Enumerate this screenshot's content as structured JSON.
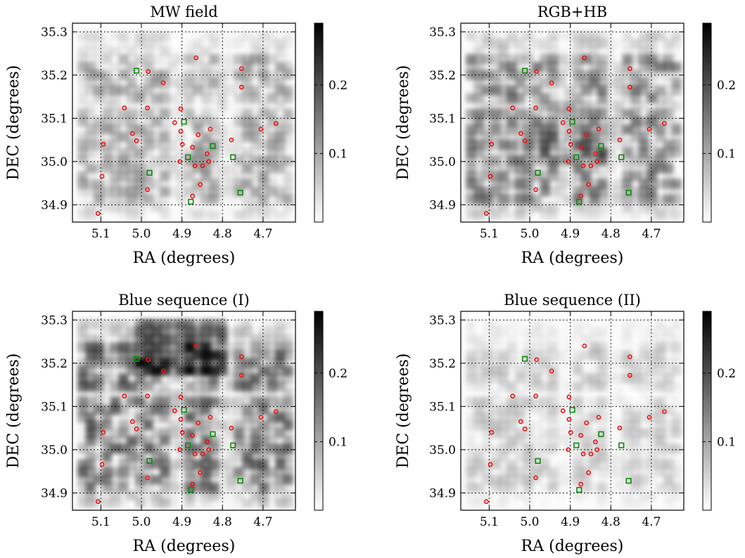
{
  "chart_data": [
    {
      "type": "heatmap",
      "title": "MW field",
      "xlabel": "RA (degrees)",
      "ylabel": "DEC (degrees)",
      "xlim": [
        5.17,
        4.62
      ],
      "ylim": [
        34.86,
        35.32
      ],
      "xticks": [
        "5.1",
        "5.0",
        "4.9",
        "4.8",
        "4.7"
      ],
      "yticks": [
        "34.9",
        "35.0",
        "35.1",
        "35.2",
        "35.3"
      ],
      "colorbar": {
        "range": [
          0,
          0.29
        ],
        "ticks": [
          "0.1",
          "0.2"
        ],
        "colormap": "white-to-black"
      },
      "grid": true,
      "density_level": 0.35
    },
    {
      "type": "heatmap",
      "title": "RGB+HB",
      "xlabel": "RA (degrees)",
      "ylabel": "DEC (degrees)",
      "xlim": [
        5.17,
        4.62
      ],
      "ylim": [
        34.86,
        35.32
      ],
      "xticks": [
        "5.1",
        "5.0",
        "4.9",
        "4.8",
        "4.7"
      ],
      "yticks": [
        "34.9",
        "35.0",
        "35.1",
        "35.2",
        "35.3"
      ],
      "colorbar": {
        "range": [
          0,
          0.29
        ],
        "ticks": [
          "0.1",
          "0.2"
        ],
        "colormap": "white-to-black"
      },
      "grid": true,
      "density_level": 0.5
    },
    {
      "type": "heatmap",
      "title": "Blue sequence (I)",
      "xlabel": "RA (degrees)",
      "ylabel": "DEC (degrees)",
      "xlim": [
        5.17,
        4.62
      ],
      "ylim": [
        34.86,
        35.32
      ],
      "xticks": [
        "5.1",
        "5.0",
        "4.9",
        "4.8",
        "4.7"
      ],
      "yticks": [
        "34.9",
        "35.0",
        "35.1",
        "35.2",
        "35.3"
      ],
      "colorbar": {
        "range": [
          0,
          0.29
        ],
        "ticks": [
          "0.1",
          "0.2"
        ],
        "colormap": "white-to-black"
      },
      "grid": true,
      "density_level": 0.6
    },
    {
      "type": "heatmap",
      "title": "Blue sequence (II)",
      "xlabel": "RA (degrees)",
      "ylabel": "DEC (degrees)",
      "xlim": [
        5.17,
        4.62
      ],
      "ylim": [
        34.86,
        35.32
      ],
      "xticks": [
        "5.1",
        "5.0",
        "4.9",
        "4.8",
        "4.7"
      ],
      "yticks": [
        "34.9",
        "35.0",
        "35.1",
        "35.2",
        "35.3"
      ],
      "colorbar": {
        "range": [
          0,
          0.29
        ],
        "ticks": [
          "0.1",
          "0.2"
        ],
        "colormap": "white-to-black"
      },
      "grid": true,
      "density_level": 0.2
    }
  ],
  "overlay_points": {
    "red_circles": {
      "color": "#ee1111",
      "marker": "circle",
      "points": [
        [
          4.865,
          35.24
        ],
        [
          4.753,
          35.215
        ],
        [
          4.753,
          35.172
        ],
        [
          4.983,
          35.208
        ],
        [
          4.946,
          35.182
        ],
        [
          5.042,
          35.124
        ],
        [
          4.985,
          35.124
        ],
        [
          4.903,
          35.122
        ],
        [
          5.022,
          35.065
        ],
        [
          5.012,
          35.048
        ],
        [
          4.918,
          35.09
        ],
        [
          4.903,
          35.07
        ],
        [
          4.83,
          35.075
        ],
        [
          4.86,
          35.062
        ],
        [
          4.705,
          35.075
        ],
        [
          4.668,
          35.088
        ],
        [
          5.094,
          35.04
        ],
        [
          4.899,
          35.04
        ],
        [
          4.874,
          35.033
        ],
        [
          4.838,
          35.018
        ],
        [
          4.778,
          35.05
        ],
        [
          4.849,
          34.99
        ],
        [
          4.834,
          35.0
        ],
        [
          4.905,
          35.0
        ],
        [
          4.868,
          34.99
        ],
        [
          5.097,
          34.966
        ],
        [
          4.985,
          34.935
        ],
        [
          4.855,
          34.947
        ],
        [
          4.874,
          34.92
        ],
        [
          5.107,
          34.88
        ]
      ]
    },
    "green_squares": {
      "color": "#118811",
      "marker": "square",
      "points": [
        [
          5.012,
          35.21
        ],
        [
          4.895,
          35.092
        ],
        [
          4.824,
          35.036
        ],
        [
          4.885,
          35.01
        ],
        [
          4.774,
          35.01
        ],
        [
          4.98,
          34.974
        ],
        [
          4.878,
          34.907
        ],
        [
          4.756,
          34.928
        ]
      ]
    }
  }
}
